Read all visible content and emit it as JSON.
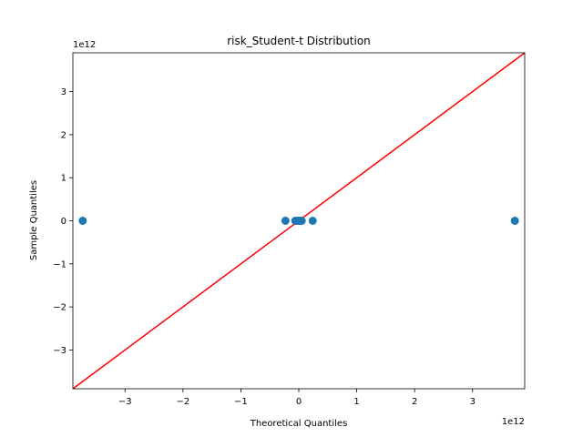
{
  "chart_data": {
    "type": "scatter",
    "title": "risk_Student-t Distribution",
    "xlabel": "Theoretical Quantiles",
    "ylabel": "Sample Quantiles",
    "x_offset_label": "1e12",
    "y_offset_label": "1e12",
    "xlim": [
      -3.9,
      3.9
    ],
    "ylim": [
      -3.9,
      3.9
    ],
    "x_ticks": [
      -3,
      -2,
      -1,
      0,
      1,
      2,
      3
    ],
    "y_ticks": [
      -3,
      -2,
      -1,
      0,
      1,
      2,
      3
    ],
    "x_tick_labels": [
      "−3",
      "−2",
      "−1",
      "0",
      "1",
      "2",
      "3"
    ],
    "y_tick_labels": [
      "−3",
      "−2",
      "−1",
      "0",
      "1",
      "2",
      "3"
    ],
    "grid": false,
    "points": [
      {
        "x": -3.73,
        "y": 0
      },
      {
        "x": -0.23,
        "y": 0
      },
      {
        "x": -0.06,
        "y": 0
      },
      {
        "x": -0.02,
        "y": 0
      },
      {
        "x": 0.0,
        "y": 0
      },
      {
        "x": 0.02,
        "y": 0
      },
      {
        "x": 0.05,
        "y": 0
      },
      {
        "x": 0.24,
        "y": 0
      },
      {
        "x": 3.73,
        "y": 0
      }
    ],
    "reference_line": {
      "x": [
        -3.9,
        3.9
      ],
      "y": [
        -3.9,
        3.9
      ]
    },
    "colors": {
      "points": "#1f77b4",
      "reference_line": "#ff0000",
      "axes": "#000000"
    }
  }
}
